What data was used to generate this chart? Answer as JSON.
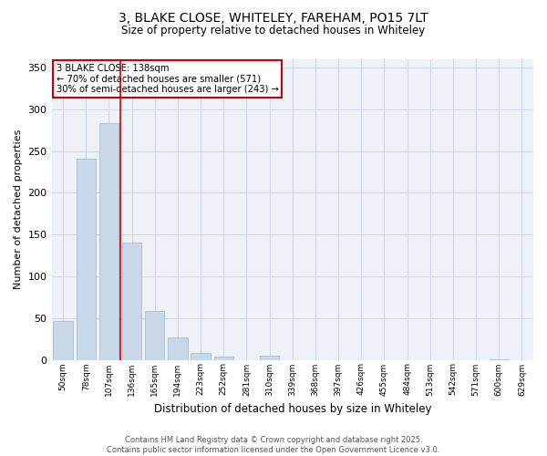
{
  "title_line1": "3, BLAKE CLOSE, WHITELEY, FAREHAM, PO15 7LT",
  "title_line2": "Size of property relative to detached houses in Whiteley",
  "xlabel": "Distribution of detached houses by size in Whiteley",
  "ylabel": "Number of detached properties",
  "categories": [
    "50sqm",
    "78sqm",
    "107sqm",
    "136sqm",
    "165sqm",
    "194sqm",
    "223sqm",
    "252sqm",
    "281sqm",
    "310sqm",
    "339sqm",
    "368sqm",
    "397sqm",
    "426sqm",
    "455sqm",
    "484sqm",
    "513sqm",
    "542sqm",
    "571sqm",
    "600sqm",
    "629sqm"
  ],
  "values": [
    46,
    241,
    284,
    140,
    59,
    27,
    8,
    4,
    0,
    5,
    0,
    0,
    0,
    0,
    0,
    0,
    0,
    0,
    0,
    1,
    0
  ],
  "bar_color": "#c8d8e8",
  "bar_edge_color": "#a0b8cc",
  "grid_color": "#d0d8e8",
  "background_color": "#eef2f8",
  "vline_index": 3,
  "vline_color": "#cc0000",
  "annotation_title": "3 BLAKE CLOSE: 138sqm",
  "annotation_line2": "← 70% of detached houses are smaller (571)",
  "annotation_line3": "30% of semi-detached houses are larger (243) →",
  "annotation_box_color": "#cc0000",
  "ylim": [
    0,
    360
  ],
  "yticks": [
    0,
    50,
    100,
    150,
    200,
    250,
    300,
    350
  ],
  "footer_line1": "Contains HM Land Registry data © Crown copyright and database right 2025.",
  "footer_line2": "Contains public sector information licensed under the Open Government Licence v3.0."
}
